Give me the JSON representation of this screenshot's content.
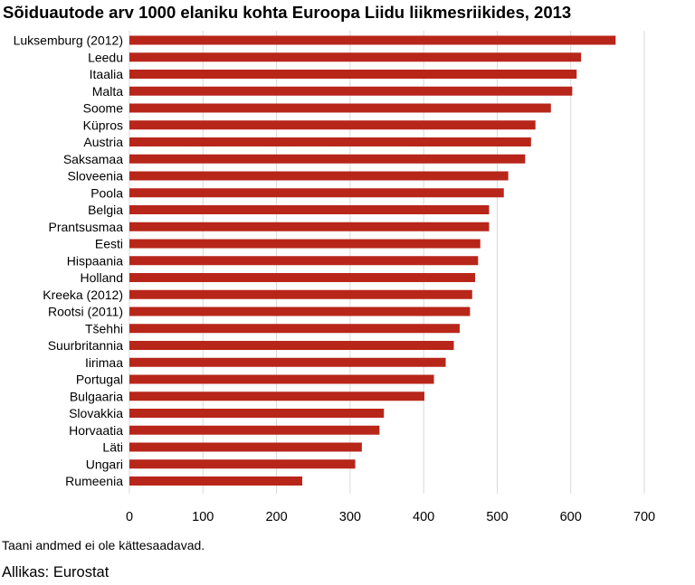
{
  "chart_data": {
    "type": "bar",
    "orientation": "horizontal",
    "title": "Sõiduautode arv 1000 elaniku kohta Euroopa Liidu liikmesriikides, 2013",
    "categories": [
      "Luksemburg (2012)",
      "Leedu",
      "Itaalia",
      "Malta",
      "Soome",
      "Küpros",
      "Austria",
      "Saksamaa",
      "Sloveenia",
      "Poola",
      "Belgia",
      "Prantsusmaa",
      "Eesti",
      "Hispaania",
      "Holland",
      "Kreeka (2012)",
      "Rootsi (2011)",
      "Tšehhi",
      "Suurbritannia",
      "Iirimaa",
      "Portugal",
      "Bulgaaria",
      "Slovakkia",
      "Horvaatia",
      "Läti",
      "Ungari",
      "Rumeenia"
    ],
    "values": [
      661,
      614,
      608,
      602,
      573,
      552,
      546,
      538,
      515,
      509,
      489,
      489,
      477,
      474,
      470,
      466,
      463,
      449,
      441,
      430,
      414,
      401,
      346,
      340,
      316,
      307,
      235
    ],
    "xlim": [
      0,
      700
    ],
    "ticks": [
      "0",
      "100",
      "200",
      "300",
      "400",
      "500",
      "600",
      "700"
    ],
    "grid": true,
    "bar_color": "#b8261a",
    "xlabel": "",
    "ylabel": ""
  },
  "note": "Taani andmed ei ole kättesaadavad.",
  "source": "Allikas: Eurostat"
}
